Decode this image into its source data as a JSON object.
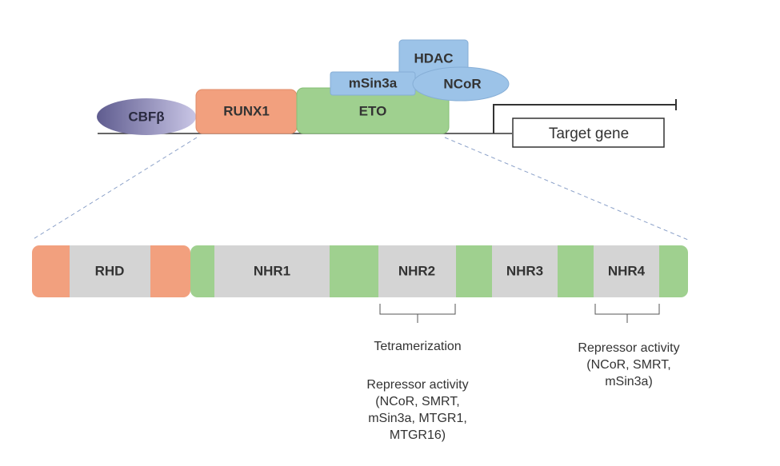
{
  "top": {
    "proteins": {
      "cbfb": "CBFβ",
      "runx1": "RUNX1",
      "eto": "ETO",
      "msin3a": "mSin3a",
      "hdac": "HDAC",
      "ncor": "NCoR"
    },
    "target_gene": "Target gene"
  },
  "domains": {
    "rhd": "RHD",
    "nhr1": "NHR1",
    "nhr2": "NHR2",
    "nhr3": "NHR3",
    "nhr4": "NHR4"
  },
  "annotations": {
    "nhr2_title": "Tetramerization",
    "nhr2_lines": [
      "Repressor activity",
      "(NCoR, SMRT,",
      "mSin3a, MTGR1,",
      "MTGR16)"
    ],
    "nhr4_lines": [
      "Repressor activity",
      "(NCoR, SMRT,",
      "mSin3a)"
    ]
  },
  "colors": {
    "runx1": "#f2a07e",
    "eto": "#9fd08f",
    "blue": "#9cc3e8",
    "cbfb": "#7a78a8",
    "domain_gray": "#d4d4d4"
  }
}
